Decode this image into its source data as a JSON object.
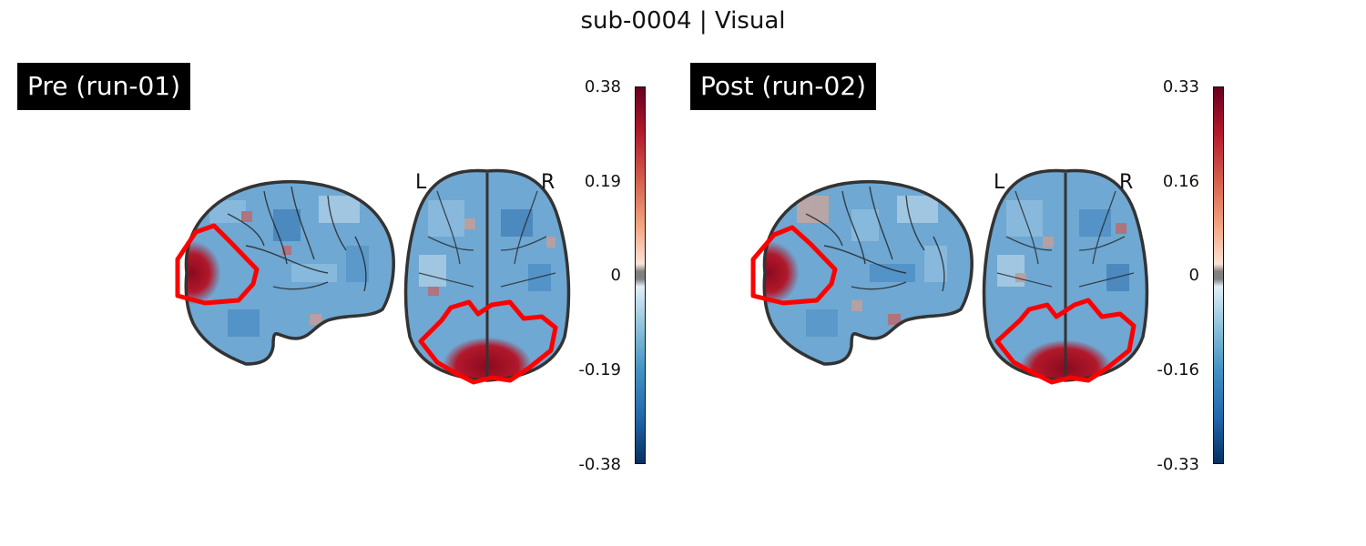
{
  "figure": {
    "title": "sub-0004 | Visual"
  },
  "panels": [
    {
      "label": "Pre (run-01)",
      "colorbar": {
        "ticks": [
          "0.38",
          "0.19",
          "0",
          "-0.19",
          "-0.38"
        ],
        "vmin": -0.38,
        "vmax": 0.38,
        "colormap": "RdBu_r"
      },
      "orientation": {
        "left": "L",
        "right": "R"
      }
    },
    {
      "label": "Post (run-02)",
      "colorbar": {
        "ticks": [
          "0.33",
          "0.16",
          "0",
          "-0.16",
          "-0.33"
        ],
        "vmin": -0.33,
        "vmax": 0.33,
        "colormap": "RdBu_r"
      },
      "orientation": {
        "left": "L",
        "right": "R"
      }
    }
  ],
  "colors": {
    "roi_outline": "#ff0000",
    "brain_outline": "#333333",
    "label_bg": "#000000"
  }
}
